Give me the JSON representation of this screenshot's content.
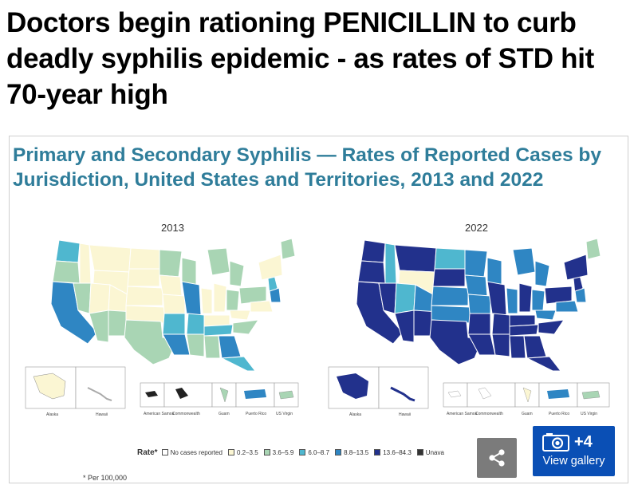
{
  "article": {
    "headline": "Doctors begin rationing PENICILLIN to curb deadly syphilis epidemic - as rates of STD hit 70-year high"
  },
  "figure": {
    "title": "Primary and Secondary Syphilis — Rates of Reported Cases by Jurisdiction, United States and Territories, 2013 and 2022",
    "maps": [
      {
        "year": "2013"
      },
      {
        "year": "2022"
      }
    ],
    "inset_labels": [
      "Alaska",
      "Hawaii",
      "American Samoa",
      "Commonwealth of the Northern Mariana Islands",
      "Guam",
      "Puerto Rico",
      "US Virgin Islands"
    ],
    "legend": {
      "label": "Rate*",
      "items": [
        {
          "label": "No cases reported",
          "color": "#ffffff"
        },
        {
          "label": "0.2–3.5",
          "color": "#fbf6d3"
        },
        {
          "label": "3.6–5.9",
          "color": "#a9d5b4"
        },
        {
          "label": "6.0–8.7",
          "color": "#4fb7cf"
        },
        {
          "label": "8.8–13.5",
          "color": "#2f86c3"
        },
        {
          "label": "13.6–84.3",
          "color": "#22318c"
        },
        {
          "label": "Unava",
          "color": "#333333"
        }
      ]
    },
    "footnote": "* Per 100,000"
  },
  "controls": {
    "share_icon": "share-icon",
    "gallery_icon": "camera-icon",
    "gallery_count": "+4",
    "gallery_label": "View gallery"
  },
  "colors": {
    "title_teal": "#2f7d9a",
    "gallery_blue": "#0a4fb5",
    "share_gray": "#7b7b7b"
  }
}
